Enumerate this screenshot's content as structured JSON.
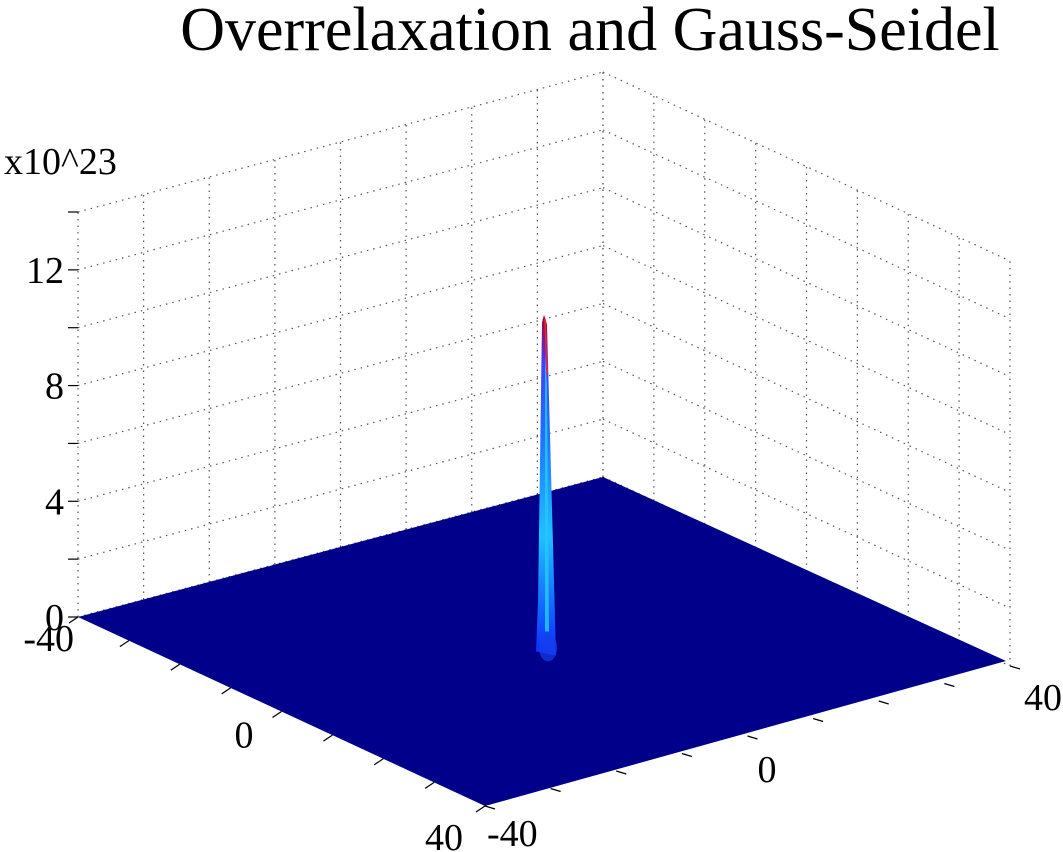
{
  "chart_data": {
    "type": "surface",
    "title": "Overrelaxation and Gauss-Seidel",
    "z_exponent_label": "x10^23",
    "x_axis": {
      "range": [
        -40,
        40
      ],
      "ticks": [
        -40,
        0,
        40
      ],
      "tick_labels": [
        "-40",
        "0",
        "40"
      ]
    },
    "y_axis": {
      "range": [
        -40,
        40
      ],
      "ticks": [
        -40,
        0,
        40
      ],
      "tick_labels": [
        "-40",
        "0",
        "40"
      ]
    },
    "z_axis": {
      "range": [
        0,
        14
      ],
      "ticks": [
        0,
        4,
        8,
        12
      ],
      "tick_labels": [
        "0",
        "4",
        "8",
        "12"
      ],
      "scale": "1e23"
    },
    "grid": true,
    "colormap": "jet",
    "surface": {
      "baseline_z": 0,
      "peak": {
        "x": 0,
        "y": 0,
        "z": 11.3
      }
    },
    "colors": {
      "surface_base": "#00008b",
      "peak_mid": "#22c8ff",
      "peak_high": "#ff2020",
      "grid": "#555555"
    }
  }
}
